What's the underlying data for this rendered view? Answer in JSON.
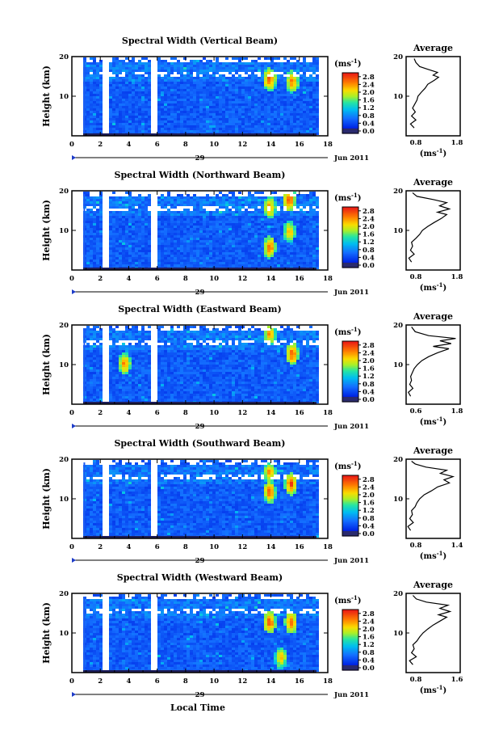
{
  "figure": {
    "xlabel": "Local Time",
    "date_label": "Jun 2011",
    "day_label": "29",
    "avg_title": "Average",
    "cbar_unit_base": "(ms",
    "cbar_unit_exp": "-1",
    "cbar_unit_close": ")"
  },
  "chart_data": [
    {
      "type": "heatmap",
      "title": "Spectral Width (Vertical Beam)",
      "ylabel": "Height (km)",
      "xlim": [
        0,
        18
      ],
      "ylim": [
        0,
        20
      ],
      "x_ticks": [
        "0",
        "2",
        "4",
        "6",
        "8",
        "10",
        "12",
        "14",
        "16",
        "18"
      ],
      "y_ticks": [
        "10",
        "20"
      ],
      "colorbar": {
        "ticks": [
          "0.0",
          "0.4",
          "0.8",
          "1.2",
          "1.6",
          "2.0",
          "2.4",
          "2.8"
        ],
        "range": [
          0,
          3.0
        ]
      },
      "data_gaps_hours": [
        [
          0.8,
          0.9
        ],
        [
          1.3,
          1.45
        ],
        [
          2.05,
          2.5
        ],
        [
          5.4,
          6.0
        ]
      ],
      "hotspots": [
        {
          "x": 13.8,
          "y": 14.5,
          "v": 2.8
        },
        {
          "x": 15.4,
          "y": 14.0,
          "v": 2.6
        }
      ],
      "average_profile": {
        "xlim": [
          0.8,
          1.8
        ],
        "x_ticks": [
          "0.8",
          "1.8"
        ],
        "y_ticks": [
          "10",
          "20"
        ],
        "xlabel_base": "(ms",
        "xlabel_exp": "-1",
        "xlabel_close": ")",
        "points": [
          [
            0.95,
            2
          ],
          [
            0.88,
            3
          ],
          [
            0.98,
            4
          ],
          [
            0.9,
            5
          ],
          [
            0.97,
            6
          ],
          [
            0.92,
            7
          ],
          [
            0.96,
            8
          ],
          [
            1.0,
            9
          ],
          [
            1.02,
            10
          ],
          [
            1.08,
            11
          ],
          [
            1.15,
            12
          ],
          [
            1.2,
            13
          ],
          [
            1.32,
            14
          ],
          [
            1.4,
            14.8
          ],
          [
            1.3,
            15.3
          ],
          [
            1.38,
            16
          ],
          [
            1.2,
            16.8
          ],
          [
            1.05,
            17.5
          ],
          [
            0.98,
            18.5
          ],
          [
            0.95,
            19.5
          ]
        ]
      }
    },
    {
      "type": "heatmap",
      "title": "Spectral Width (Northward Beam)",
      "ylabel": "Height (km)",
      "xlim": [
        0,
        18
      ],
      "ylim": [
        0,
        20
      ],
      "x_ticks": [
        "0",
        "2",
        "4",
        "6",
        "8",
        "10",
        "12",
        "14",
        "16",
        "18"
      ],
      "y_ticks": [
        "10",
        "20"
      ],
      "colorbar": {
        "ticks": [
          "0.0",
          "0.4",
          "0.8",
          "1.2",
          "1.6",
          "2.0",
          "2.4",
          "2.8"
        ],
        "range": [
          0,
          3.0
        ]
      },
      "data_gaps_hours": [
        [
          0.8,
          0.9
        ],
        [
          1.3,
          1.45
        ],
        [
          2.05,
          2.5
        ],
        [
          5.4,
          6.0
        ]
      ],
      "hotspots": [
        {
          "x": 13.8,
          "y": 6,
          "v": 2.7
        },
        {
          "x": 13.8,
          "y": 16,
          "v": 2.5
        },
        {
          "x": 15.2,
          "y": 18,
          "v": 2.8
        },
        {
          "x": 15.2,
          "y": 10,
          "v": 2.3
        }
      ],
      "average_profile": {
        "xlim": [
          0.8,
          1.8
        ],
        "x_ticks": [
          "0.8",
          "1.8"
        ],
        "y_ticks": [
          "10",
          "20"
        ],
        "xlabel_base": "(ms",
        "xlabel_exp": "-1",
        "xlabel_close": ")",
        "points": [
          [
            0.9,
            2
          ],
          [
            0.85,
            3
          ],
          [
            0.95,
            4
          ],
          [
            0.88,
            5
          ],
          [
            0.92,
            6
          ],
          [
            0.9,
            7
          ],
          [
            0.98,
            8
          ],
          [
            1.05,
            9
          ],
          [
            1.1,
            10
          ],
          [
            1.2,
            11
          ],
          [
            1.32,
            12
          ],
          [
            1.45,
            13
          ],
          [
            1.55,
            14
          ],
          [
            1.38,
            14.6
          ],
          [
            1.6,
            15.4
          ],
          [
            1.42,
            16.2
          ],
          [
            1.55,
            17
          ],
          [
            1.3,
            17.8
          ],
          [
            1.0,
            18.6
          ],
          [
            0.92,
            19.5
          ]
        ]
      }
    },
    {
      "type": "heatmap",
      "title": "Spectral Width (Eastward Beam)",
      "ylabel": "Height (km)",
      "xlim": [
        0,
        18
      ],
      "ylim": [
        0,
        20
      ],
      "x_ticks": [
        "0",
        "2",
        "4",
        "6",
        "8",
        "10",
        "12",
        "14",
        "16",
        "18"
      ],
      "y_ticks": [
        "10",
        "20"
      ],
      "colorbar": {
        "ticks": [
          "0.0",
          "0.4",
          "0.8",
          "1.2",
          "1.6",
          "2.0",
          "2.4",
          "2.8"
        ],
        "range": [
          0,
          3.0
        ]
      },
      "data_gaps_hours": [
        [
          0.8,
          0.9
        ],
        [
          1.3,
          1.45
        ],
        [
          2.05,
          2.5
        ],
        [
          5.4,
          6.0
        ]
      ],
      "hotspots": [
        {
          "x": 3.6,
          "y": 10.5,
          "v": 2.6
        },
        {
          "x": 13.8,
          "y": 18,
          "v": 2.5
        },
        {
          "x": 15.4,
          "y": 13,
          "v": 2.8
        }
      ],
      "average_profile": {
        "xlim": [
          0.6,
          1.8
        ],
        "x_ticks": [
          "0.6",
          "1.8"
        ],
        "y_ticks": [
          "10",
          "20"
        ],
        "xlabel_base": "(ms",
        "xlabel_exp": "-1",
        "xlabel_close": ")",
        "points": [
          [
            0.7,
            2
          ],
          [
            0.65,
            3
          ],
          [
            0.75,
            4
          ],
          [
            0.68,
            5
          ],
          [
            0.72,
            6
          ],
          [
            0.7,
            7
          ],
          [
            0.74,
            8
          ],
          [
            0.78,
            9
          ],
          [
            0.85,
            10
          ],
          [
            0.95,
            11
          ],
          [
            1.1,
            12
          ],
          [
            1.3,
            13
          ],
          [
            1.55,
            14
          ],
          [
            1.2,
            14.6
          ],
          [
            1.6,
            15.3
          ],
          [
            1.35,
            16
          ],
          [
            1.7,
            16.6
          ],
          [
            1.1,
            17.3
          ],
          [
            0.8,
            18.3
          ],
          [
            0.72,
            19.5
          ]
        ]
      }
    },
    {
      "type": "heatmap",
      "title": "Spectral Width (Southward Beam)",
      "ylabel": "Height (km)",
      "xlim": [
        0,
        18
      ],
      "ylim": [
        0,
        20
      ],
      "x_ticks": [
        "0",
        "2",
        "4",
        "6",
        "8",
        "10",
        "12",
        "14",
        "16",
        "18"
      ],
      "y_ticks": [
        "10",
        "20"
      ],
      "colorbar": {
        "ticks": [
          "0.0",
          "0.4",
          "0.8",
          "1.2",
          "1.6",
          "2.0",
          "2.4",
          "2.8"
        ],
        "range": [
          0,
          3.0
        ]
      },
      "data_gaps_hours": [
        [
          0.8,
          0.9
        ],
        [
          1.3,
          1.45
        ],
        [
          2.05,
          2.5
        ],
        [
          5.4,
          6.0
        ]
      ],
      "hotspots": [
        {
          "x": 13.8,
          "y": 12,
          "v": 2.7
        },
        {
          "x": 13.8,
          "y": 17,
          "v": 2.4
        },
        {
          "x": 15.3,
          "y": 14,
          "v": 2.8
        }
      ],
      "average_profile": {
        "xlim": [
          0.8,
          1.4
        ],
        "x_ticks": [
          "0.8",
          "1.4"
        ],
        "y_ticks": [
          "10",
          "20"
        ],
        "xlabel_base": "(ms",
        "xlabel_exp": "-1",
        "xlabel_close": ")",
        "points": [
          [
            0.85,
            2
          ],
          [
            0.82,
            3
          ],
          [
            0.88,
            4
          ],
          [
            0.84,
            5
          ],
          [
            0.87,
            6
          ],
          [
            0.86,
            7
          ],
          [
            0.9,
            8
          ],
          [
            0.92,
            9
          ],
          [
            0.95,
            10
          ],
          [
            1.0,
            11
          ],
          [
            1.08,
            12
          ],
          [
            1.15,
            13
          ],
          [
            1.28,
            14
          ],
          [
            1.22,
            14.8
          ],
          [
            1.32,
            15.6
          ],
          [
            1.18,
            16.4
          ],
          [
            1.25,
            17.2
          ],
          [
            1.02,
            18
          ],
          [
            0.9,
            18.8
          ],
          [
            0.86,
            19.5
          ]
        ]
      }
    },
    {
      "type": "heatmap",
      "title": "Spectral Width (Westward Beam)",
      "ylabel": "Height (km)",
      "xlim": [
        0,
        18
      ],
      "ylim": [
        0,
        20
      ],
      "x_ticks": [
        "0",
        "2",
        "4",
        "6",
        "8",
        "10",
        "12",
        "14",
        "16",
        "18"
      ],
      "y_ticks": [
        "10",
        "20"
      ],
      "colorbar": {
        "ticks": [
          "0.0",
          "0.4",
          "0.8",
          "1.2",
          "1.6",
          "2.0",
          "2.4",
          "2.8"
        ],
        "range": [
          0,
          3.0
        ]
      },
      "data_gaps_hours": [
        [
          0.8,
          0.9
        ],
        [
          1.3,
          1.45
        ],
        [
          2.05,
          2.5
        ],
        [
          5.4,
          6.0
        ]
      ],
      "hotspots": [
        {
          "x": 13.8,
          "y": 13,
          "v": 2.8
        },
        {
          "x": 15.3,
          "y": 13,
          "v": 2.7
        },
        {
          "x": 14.6,
          "y": 4,
          "v": 2.3
        }
      ],
      "average_profile": {
        "xlim": [
          0.8,
          1.6
        ],
        "x_ticks": [
          "0.8",
          "1.6"
        ],
        "y_ticks": [
          "10",
          "20"
        ],
        "xlabel_base": "(ms",
        "xlabel_exp": "-1",
        "xlabel_close": ")",
        "points": [
          [
            0.9,
            2
          ],
          [
            0.85,
            3
          ],
          [
            0.95,
            4
          ],
          [
            0.88,
            5
          ],
          [
            0.92,
            6
          ],
          [
            0.9,
            7
          ],
          [
            0.96,
            8
          ],
          [
            1.0,
            9
          ],
          [
            1.05,
            10
          ],
          [
            1.12,
            11
          ],
          [
            1.2,
            12
          ],
          [
            1.3,
            13
          ],
          [
            1.4,
            14
          ],
          [
            1.28,
            14.6
          ],
          [
            1.45,
            15.4
          ],
          [
            1.3,
            16.2
          ],
          [
            1.42,
            17
          ],
          [
            1.1,
            17.8
          ],
          [
            0.95,
            18.6
          ],
          [
            0.9,
            19.5
          ]
        ]
      }
    }
  ]
}
